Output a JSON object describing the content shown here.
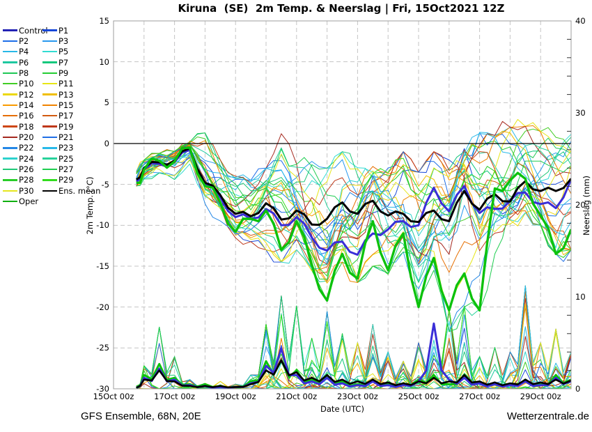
{
  "footer": {
    "left": "GFS Ensemble, 68N, 20E",
    "right": "Wetterzentrale.de"
  },
  "chart_data": {
    "type": "line",
    "title": "Kiruna  (SE)  2m Temp. & Neerslag | Fri, 15Oct2021 12Z",
    "x_axis": {
      "label": "Date (UTC)",
      "tick_hours": [
        0,
        48,
        96,
        144,
        192,
        240,
        288,
        336
      ],
      "tick_labels": [
        "15Oct 00z",
        "17Oct 00z",
        "19Oct 00z",
        "21Oct 00z",
        "23Oct 00z",
        "25Oct 00z",
        "27Oct 00z",
        "29Oct 00z"
      ],
      "grid_step_hours": 24,
      "range_hours": [
        0,
        360
      ]
    },
    "y_left": {
      "label": "2m Temp. (°C)",
      "min": -30,
      "max": 15,
      "tick_step": 5,
      "zero_line": true
    },
    "y_right": {
      "label": "Neerslag (mm)",
      "min": 0,
      "max": 40,
      "tick_step": 10,
      "minor_step": 2
    },
    "legend": [
      {
        "label": "Control",
        "color": "#2222b4",
        "lw": 2.5
      },
      {
        "label": "P1",
        "color": "#1646d8",
        "lw": 1
      },
      {
        "label": "P2",
        "color": "#1e6ee8",
        "lw": 1
      },
      {
        "label": "P3",
        "color": "#2898ee",
        "lw": 1
      },
      {
        "label": "P4",
        "color": "#28b8e6",
        "lw": 1
      },
      {
        "label": "P5",
        "color": "#32dcd2",
        "lw": 1
      },
      {
        "label": "P6",
        "color": "#1ec8a0",
        "lw": 1
      },
      {
        "label": "P7",
        "color": "#14c87d",
        "lw": 1
      },
      {
        "label": "P8",
        "color": "#1ec855",
        "lw": 1
      },
      {
        "label": "P9",
        "color": "#23cd32",
        "lw": 1
      },
      {
        "label": "P10",
        "color": "#41cd23",
        "lw": 1
      },
      {
        "label": "P11",
        "color": "#e6e614",
        "lw": 1
      },
      {
        "label": "P12",
        "color": "#ecd80a",
        "lw": 1
      },
      {
        "label": "P13",
        "color": "#f0be00",
        "lw": 1
      },
      {
        "label": "P14",
        "color": "#fa9b00",
        "lw": 1
      },
      {
        "label": "P15",
        "color": "#f08200",
        "lw": 1
      },
      {
        "label": "P16",
        "color": "#e66e00",
        "lw": 1
      },
      {
        "label": "P17",
        "color": "#d25a0f",
        "lw": 1
      },
      {
        "label": "P18",
        "color": "#cd4614",
        "lw": 1
      },
      {
        "label": "P19",
        "color": "#be3719",
        "lw": 1
      },
      {
        "label": "P20",
        "color": "#a5281e",
        "lw": 1
      },
      {
        "label": "P21",
        "color": "#1e6ee6",
        "lw": 1
      },
      {
        "label": "P22",
        "color": "#2387e6",
        "lw": 1
      },
      {
        "label": "P23",
        "color": "#28b9e9",
        "lw": 1
      },
      {
        "label": "P24",
        "color": "#2dd2cd",
        "lw": 1
      },
      {
        "label": "P25",
        "color": "#28d29b",
        "lw": 1
      },
      {
        "label": "P26",
        "color": "#1ec878",
        "lw": 1
      },
      {
        "label": "P27",
        "color": "#1ecd50",
        "lw": 1
      },
      {
        "label": "P28",
        "color": "#28cd28",
        "lw": 1
      },
      {
        "label": "P29",
        "color": "#32dc1e",
        "lw": 1
      },
      {
        "label": "P30",
        "color": "#e6e61e",
        "lw": 1
      },
      {
        "label": "Ens. mean",
        "color": "#000000",
        "lw": 2.5
      },
      {
        "label": "Oper",
        "color": "#0faf0f",
        "lw": 2.5
      }
    ],
    "hours": [
      18,
      24,
      36,
      48,
      60,
      72,
      84,
      96,
      108,
      120,
      132,
      144,
      156,
      168,
      180,
      192,
      204,
      216,
      228,
      240,
      252,
      264,
      276,
      288,
      300,
      312,
      324,
      336,
      348,
      360
    ],
    "temperature": {
      "ens_mean": [
        -4.4,
        -3.0,
        -2.3,
        -2.1,
        -0.6,
        -4.8,
        -6.3,
        -8.6,
        -8.9,
        -7.3,
        -9.3,
        -8.2,
        -9.9,
        -9.2,
        -7.2,
        -8.6,
        -7.0,
        -8.8,
        -8.6,
        -9.6,
        -8.2,
        -9.5,
        -5.8,
        -8.1,
        -6.2,
        -7.1,
        -4.6,
        -5.8,
        -5.8,
        -4.3
      ],
      "control": [
        -4.6,
        -3.2,
        -2.5,
        -2.3,
        -0.8,
        -5.0,
        -6.6,
        -9.0,
        -9.2,
        -8.0,
        -10.0,
        -9.0,
        -11.5,
        -13.1,
        -12.0,
        -13.6,
        -11.0,
        -10.5,
        -9.5,
        -10.0,
        -5.4,
        -8.3,
        -5.2,
        -8.5,
        -8.0,
        -7.0,
        -6.0,
        -7.4,
        -7.9,
        -4.4
      ],
      "oper": [
        -4.8,
        -3.2,
        -2.1,
        -2.2,
        -0.5,
        -5.2,
        -7.2,
        -10.8,
        -9.2,
        -8.2,
        -13.0,
        -9.5,
        -14.8,
        -19.2,
        -13.5,
        -16.5,
        -9.5,
        -15.5,
        -11.0,
        -20.0,
        -14.0,
        -20.4,
        -15.9,
        -20.4,
        -5.5,
        -4.5,
        -4.3,
        -8.8,
        -13.5,
        -10.5
      ],
      "spread_min": [
        -5.5,
        -4.5,
        -3.6,
        -4.4,
        -2.5,
        -7.5,
        -9.5,
        -12.0,
        -12.0,
        -13.0,
        -14.5,
        -13.0,
        -16.0,
        -19.2,
        -14.5,
        -17.0,
        -15.0,
        -16.0,
        -13.5,
        -20.0,
        -15.5,
        -23.0,
        -20.0,
        -20.4,
        -13.5,
        -10.5,
        -9.0,
        -10.0,
        -13.5,
        -13.0
      ],
      "spread_max": [
        -3.4,
        -2.0,
        -1.2,
        -0.9,
        0.3,
        1.3,
        -2.0,
        -4.0,
        -4.5,
        -3.0,
        1.2,
        -2.5,
        -1.5,
        -3.0,
        -1.0,
        -2.5,
        -1.5,
        -3.0,
        -1.0,
        -3.5,
        -1.0,
        -2.0,
        1.0,
        1.5,
        1.0,
        2.0,
        2.1,
        1.5,
        1.0,
        2.0
      ],
      "unit": "°C"
    },
    "precipitation": {
      "ens_mean": [
        0.1,
        1.0,
        2.0,
        0.8,
        0.3,
        0.3,
        0.3,
        0.2,
        0.5,
        2.0,
        3.1,
        1.8,
        1.2,
        1.5,
        1.0,
        0.8,
        1.0,
        0.7,
        0.6,
        0.8,
        1.2,
        0.8,
        1.5,
        0.8,
        0.7,
        0.6,
        1.0,
        0.7,
        1.0,
        0.9
      ],
      "control": [
        0.1,
        1.2,
        2.2,
        1.0,
        0.4,
        0.3,
        0.2,
        0.2,
        0.6,
        2.5,
        4.4,
        1.5,
        0.8,
        1.2,
        0.6,
        0.4,
        0.8,
        0.4,
        0.4,
        0.8,
        7.1,
        1.0,
        1.2,
        0.6,
        0.5,
        0.4,
        0.8,
        0.4,
        1.2,
        0.8
      ],
      "oper": [
        0.1,
        1.5,
        2.7,
        1.2,
        0.5,
        0.5,
        0.3,
        0.2,
        0.8,
        3.0,
        3.1,
        2.0,
        1.0,
        1.5,
        0.8,
        0.5,
        1.0,
        0.5,
        0.5,
        1.0,
        1.5,
        0.5,
        1.5,
        0.8,
        0.5,
        0.5,
        1.0,
        0.5,
        1.5,
        1.0
      ],
      "spread_max": [
        0.3,
        2.5,
        6.7,
        3.5,
        1.0,
        0.6,
        0.8,
        0.5,
        1.5,
        7.0,
        10.1,
        9.0,
        5.5,
        8.4,
        6.0,
        5.0,
        7.0,
        4.0,
        3.0,
        5.0,
        7.1,
        8.7,
        9.0,
        3.5,
        4.5,
        4.0,
        11.2,
        5.0,
        6.5,
        4.0
      ],
      "unit": "mm"
    },
    "colors": {
      "ens_mean": "#000000",
      "control": "#3a2ed8",
      "oper": "#0cc20c",
      "grid": "#c4c4c4",
      "border": "#9e9e9e",
      "zero_line": "#000000"
    }
  }
}
